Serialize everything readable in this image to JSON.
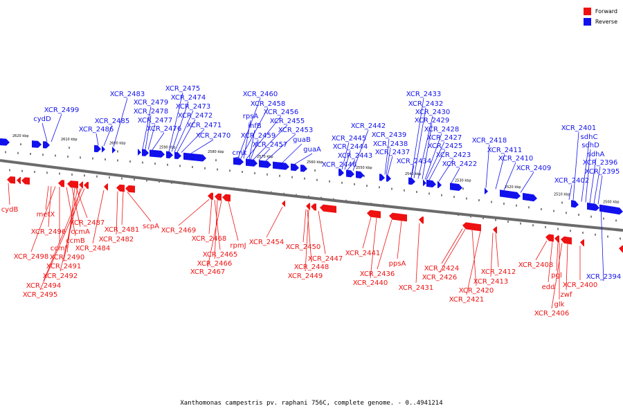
{
  "caption": "Xanthomonas campestris pv. raphani 756C, complete genome. - 0..4941214",
  "colors": {
    "forward": "#ee1111",
    "reverse": "#1111ee",
    "backbone": "#6b6b6b"
  },
  "legend": [
    {
      "label": "Forward",
      "color": "#ee1111"
    },
    {
      "label": "Reverse",
      "color": "#1111ee"
    }
  ],
  "ticks": [
    "2620 kbp",
    "2610 kbp",
    "2600 kbp",
    "2590 kbp",
    "2580 kbp",
    "2570 kbp",
    "2560 kbp",
    "2550 kbp",
    "2540 kbp",
    "2530 kbp",
    "2520 kbp",
    "2510 kbp",
    "2500 kbp"
  ],
  "forward_genes": [
    "cydB",
    "metX",
    "XCR_2496",
    "XCR_2498",
    "ccmF",
    "ccmB",
    "ccmA",
    "XCR_2487",
    "XCR_2490",
    "XCR_2491",
    "XCR_2492",
    "XCR_2494",
    "XCR_2495",
    "XCR_2484",
    "XCR_2482",
    "XCR_2481",
    "scpA",
    "XCR_2469",
    "XCR_2468",
    "XCR_2465",
    "XCR_2466",
    "XCR_2467",
    "rpmJ",
    "XCR_2454",
    "XCR_2450",
    "XCR_2448",
    "XCR_2449",
    "XCR_2447",
    "XCR_2441",
    "XCR_2440",
    "XCR_2436",
    "ppsA",
    "XCR_2431",
    "XCR_2424",
    "XCR_2426",
    "XCR_2420",
    "XCR_2421",
    "XCR_2413",
    "XCR_2412",
    "XCR_2408",
    "edd",
    "pgl",
    "glk",
    "XCR_2406",
    "zwf",
    "XCR_2400"
  ],
  "reverse_genes": [
    "XCR_2499",
    "cydD",
    "XCR_2486",
    "XCR_2485",
    "XCR_2483",
    "XCR_2479",
    "XCR_2478",
    "XCR_2477",
    "XCR_2476",
    "XCR_2475",
    "XCR_2474",
    "XCR_2473",
    "XCR_2472",
    "XCR_2471",
    "XCR_2470",
    "XCR_2460",
    "XCR_2458",
    "rpsA",
    "XCR_2456",
    "ihfB",
    "XCR_2455",
    "XCR_2459",
    "XCR_2453",
    "XCR_2457",
    "guaB",
    "cmk",
    "guaA",
    "XCR_2442",
    "XCR_2445",
    "XCR_2444",
    "XCR_2443",
    "XCR_2446",
    "XCR_2439",
    "XCR_2438",
    "XCR_2437",
    "XCR_2434",
    "XCR_2433",
    "XCR_2432",
    "XCR_2430",
    "XCR_2429",
    "XCR_2428",
    "XCR_2427",
    "XCR_2425",
    "XCR_2423",
    "XCR_2422",
    "XCR_2418",
    "XCR_2411",
    "XCR_2410",
    "XCR_2409",
    "XCR_2401",
    "sdhC",
    "sdhD",
    "sdhA",
    "XCR_2396",
    "XCR_2395",
    "XCR_2402",
    "XCR_2394"
  ]
}
